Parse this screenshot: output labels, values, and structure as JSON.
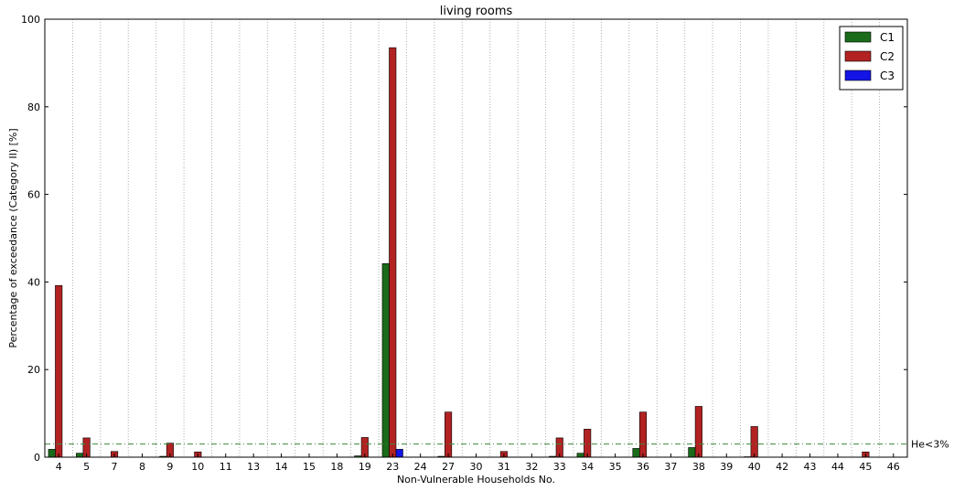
{
  "chart_data": {
    "type": "bar",
    "title": "living rooms",
    "xlabel": "Non-Vulnerable Households No.",
    "ylabel": "Percentage of exceedance (Category II) [%]",
    "ylim": [
      0,
      100
    ],
    "yticks": [
      0,
      20,
      40,
      60,
      80,
      100
    ],
    "grid": "vertical dotted",
    "legend_position": "top-right",
    "categories": [
      "4",
      "5",
      "7",
      "8",
      "9",
      "10",
      "11",
      "13",
      "14",
      "15",
      "18",
      "19",
      "23",
      "24",
      "27",
      "30",
      "31",
      "32",
      "33",
      "34",
      "35",
      "36",
      "37",
      "38",
      "39",
      "40",
      "42",
      "43",
      "44",
      "45",
      "46"
    ],
    "series": [
      {
        "name": "C1",
        "color": "#1a6b1a",
        "values": [
          1.8,
          0.9,
          0,
          0,
          0.2,
          0,
          0,
          0,
          0,
          0,
          0,
          0.3,
          44.2,
          0,
          0.2,
          0,
          0,
          0,
          0.2,
          0.9,
          0,
          2.0,
          0,
          2.2,
          0,
          0.1,
          0,
          0,
          0,
          0,
          0
        ]
      },
      {
        "name": "C2",
        "color": "#b22222",
        "values": [
          39.2,
          4.4,
          1.3,
          0,
          3.2,
          1.2,
          0,
          0,
          0,
          0,
          0,
          4.5,
          93.5,
          0,
          10.3,
          0,
          1.3,
          0,
          4.4,
          6.4,
          0,
          10.3,
          0,
          11.6,
          0,
          7.0,
          0,
          0,
          0,
          1.2,
          0
        ]
      },
      {
        "name": "C3",
        "color": "#1414e6",
        "values": [
          0,
          0,
          0,
          0,
          0,
          0,
          0,
          0,
          0,
          0,
          0,
          0,
          1.8,
          0,
          0,
          0,
          0,
          0,
          0,
          0,
          0,
          0,
          0,
          0,
          0,
          0,
          0,
          0,
          0,
          0,
          0
        ]
      }
    ],
    "threshold": {
      "value": 3,
      "label": "He<3%",
      "color": "#3a8a3a"
    }
  }
}
